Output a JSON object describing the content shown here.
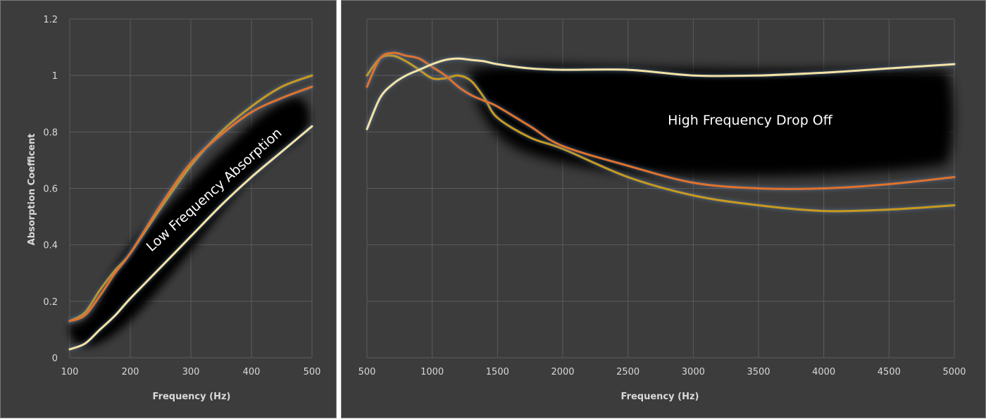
{
  "chart_data": [
    {
      "type": "line",
      "xlabel": "Frequency (Hz)",
      "ylabel": "Absorption Coefficent",
      "xlim": [
        100,
        500
      ],
      "ylim": [
        0,
        1.2
      ],
      "xticks": [
        "100",
        "200",
        "300",
        "400",
        "500"
      ],
      "yticks": [
        "0",
        "0.2",
        "0.4",
        "0.6",
        "0.8",
        "1",
        "1.2"
      ],
      "grid": true,
      "annotation": "Low Frequency Absorption",
      "series": [
        {
          "color": "#c89a1e",
          "x": [
            100,
            125,
            150,
            175,
            200,
            250,
            300,
            350,
            400,
            450,
            500
          ],
          "values": [
            0.13,
            0.16,
            0.24,
            0.31,
            0.37,
            0.53,
            0.68,
            0.8,
            0.89,
            0.96,
            1.0
          ]
        },
        {
          "color": "#e0722a",
          "x": [
            100,
            125,
            150,
            175,
            200,
            250,
            300,
            350,
            400,
            450,
            500
          ],
          "values": [
            0.13,
            0.15,
            0.22,
            0.3,
            0.37,
            0.54,
            0.69,
            0.79,
            0.87,
            0.92,
            0.96
          ]
        },
        {
          "color": "#f2e2a6",
          "x": [
            100,
            125,
            150,
            175,
            200,
            250,
            300,
            350,
            400,
            450,
            500
          ],
          "values": [
            0.03,
            0.05,
            0.1,
            0.15,
            0.21,
            0.32,
            0.43,
            0.54,
            0.64,
            0.73,
            0.82
          ]
        }
      ]
    },
    {
      "type": "line",
      "xlabel": "Frequency (Hz)",
      "ylabel": "",
      "xlim": [
        500,
        5000
      ],
      "ylim": [
        0,
        1.2
      ],
      "xticks": [
        "500",
        "1000",
        "1500",
        "2000",
        "2500",
        "3000",
        "3500",
        "4000",
        "4500",
        "5000"
      ],
      "grid": true,
      "annotation": "High Frequency Drop Off",
      "series": [
        {
          "color": "#c89a1e",
          "x": [
            500,
            600,
            700,
            800,
            900,
            1000,
            1100,
            1200,
            1300,
            1400,
            1500,
            1750,
            2000,
            2500,
            3000,
            3500,
            4000,
            4500,
            5000
          ],
          "values": [
            1.0,
            1.06,
            1.07,
            1.05,
            1.02,
            0.99,
            0.99,
            1.0,
            0.98,
            0.92,
            0.85,
            0.78,
            0.74,
            0.64,
            0.575,
            0.54,
            0.52,
            0.525,
            0.54
          ]
        },
        {
          "color": "#e0722a",
          "x": [
            500,
            600,
            700,
            800,
            900,
            1000,
            1100,
            1200,
            1300,
            1400,
            1500,
            1750,
            2000,
            2500,
            3000,
            3500,
            4000,
            4500,
            5000
          ],
          "values": [
            0.96,
            1.06,
            1.08,
            1.07,
            1.06,
            1.03,
            1.0,
            0.96,
            0.93,
            0.91,
            0.89,
            0.82,
            0.75,
            0.68,
            0.62,
            0.6,
            0.6,
            0.615,
            0.64
          ]
        },
        {
          "color": "#f2e2a6",
          "x": [
            500,
            600,
            700,
            800,
            900,
            1000,
            1100,
            1200,
            1300,
            1400,
            1500,
            1750,
            2000,
            2500,
            3000,
            3500,
            4000,
            4500,
            5000
          ],
          "values": [
            0.81,
            0.92,
            0.97,
            1.0,
            1.02,
            1.04,
            1.055,
            1.06,
            1.055,
            1.05,
            1.04,
            1.025,
            1.02,
            1.02,
            1.0,
            1.0,
            1.01,
            1.025,
            1.04
          ]
        }
      ]
    }
  ]
}
